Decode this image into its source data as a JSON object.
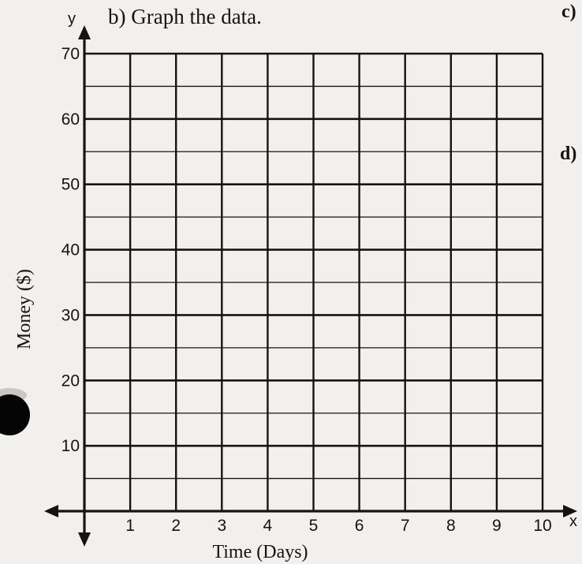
{
  "page": {
    "part_b_label": "b) Graph the data.",
    "part_c_label": "c)",
    "part_d_label": "d)"
  },
  "colors": {
    "paper": "#f2f0ec",
    "ink": "#141414",
    "punch_hole": "#050505"
  },
  "chart_data": {
    "type": "scatter",
    "title": "b) Graph the data.",
    "xlabel": "Time (Days)",
    "ylabel": "Money ($)",
    "x_axis_letter": "x",
    "y_axis_letter": "y",
    "xlim": [
      0,
      10
    ],
    "ylim": [
      0,
      70
    ],
    "x_ticks": [
      1,
      2,
      3,
      4,
      5,
      6,
      7,
      8,
      9,
      10
    ],
    "y_ticks": [
      10,
      20,
      30,
      40,
      50,
      60,
      70
    ],
    "grid": true,
    "y_minor_step": 5,
    "series": []
  }
}
